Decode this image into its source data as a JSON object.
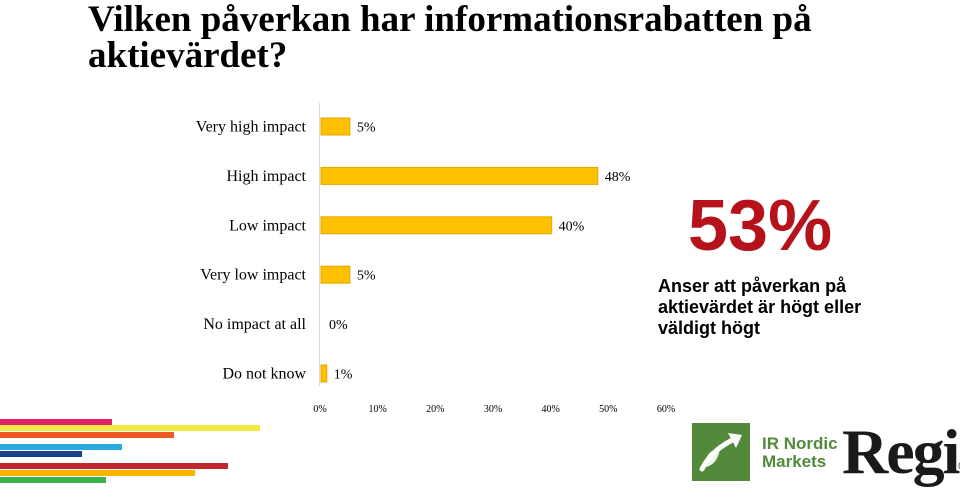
{
  "title": "Vilken påverkan har informationsrabatten på aktievärdet?",
  "chart_data": {
    "type": "bar",
    "orientation": "horizontal",
    "categories": [
      "Very high impact",
      "High impact",
      "Low impact",
      "Very low impact",
      "No impact at all",
      "Do not know"
    ],
    "values": [
      5,
      48,
      40,
      5,
      0,
      1
    ],
    "value_labels": [
      "5%",
      "48%",
      "40%",
      "5%",
      "0%",
      "1%"
    ],
    "xlim": [
      0,
      60
    ],
    "xticks": [
      0,
      10,
      20,
      30,
      40,
      50,
      60
    ],
    "xtick_labels": [
      "0%",
      "10%",
      "20%",
      "30%",
      "40%",
      "50%",
      "60%"
    ],
    "bar_color": "#ffc000",
    "bar_edge_color": "#e0a800",
    "grid": false
  },
  "highlight": {
    "value": "53%",
    "description": "Anser att påverkan på aktievärdet är högt eller väldigt högt",
    "color": "#b5121b"
  },
  "stripes": [
    {
      "color": "#e2226b",
      "length": 112
    },
    {
      "color": "#f4e842",
      "length": 260
    },
    {
      "color": "#f15a24",
      "length": 174
    },
    {
      "color": "#29abe2",
      "length": 122
    },
    {
      "color": "#1b3f8f",
      "length": 82
    },
    {
      "color": "#c1272d",
      "length": 228
    },
    {
      "color": "#f7b500",
      "length": 195
    },
    {
      "color": "#39b54a",
      "length": 106
    }
  ],
  "logos": {
    "ir_nordic_line1": "IR Nordic",
    "ir_nordic_line2": "Markets",
    "ir_icon": "leaf-arrow-icon",
    "ir_color": "#52893b",
    "regi": "Regi",
    "regi_mark": "®"
  }
}
